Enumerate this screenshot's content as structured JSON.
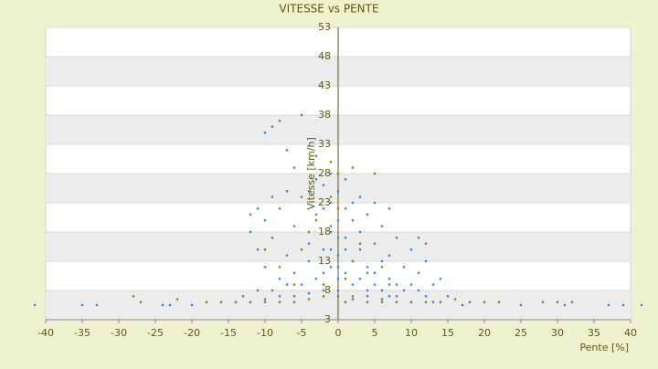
{
  "chart_data": {
    "type": "scatter",
    "title": "VITESSE vs PENTE",
    "x_label": "Pente [%]",
    "y_label": "Vitesse [km/h]",
    "xlim": [
      -40,
      40
    ],
    "xticks": [
      -40,
      -35,
      -30,
      -25,
      -20,
      -15,
      -10,
      -5,
      0,
      5,
      10,
      15,
      20,
      25,
      30,
      35,
      40
    ],
    "ylim": [
      3,
      53
    ],
    "yticks": [
      3,
      8,
      13,
      18,
      23,
      28,
      33,
      38,
      43,
      48,
      53
    ],
    "grid": true,
    "series": [
      {
        "color": "#3b8fd8",
        "x": [
          -41.5,
          -35,
          -33,
          -24,
          -23,
          -20,
          17,
          25,
          28,
          31,
          37,
          39,
          41.5,
          -10,
          -9,
          -8,
          -5,
          -7,
          -3,
          -6,
          -12,
          -11,
          -10,
          -9,
          -8,
          -7,
          -6,
          -5,
          -4,
          -3,
          -2,
          -1,
          0,
          1,
          2,
          3,
          4,
          5,
          6,
          7,
          8,
          9,
          10,
          11,
          12,
          13,
          14,
          15,
          -10,
          -8,
          -6,
          -4,
          -2,
          -1,
          0,
          0,
          1,
          2,
          3,
          4,
          5,
          6,
          7,
          8,
          9,
          10,
          11,
          12,
          -13,
          -11,
          -9,
          -7,
          -5,
          -3,
          -2,
          -1,
          0,
          1,
          2,
          3,
          4,
          5,
          6,
          7,
          8,
          10,
          13,
          -14,
          -12,
          -10,
          -8,
          -6,
          -4,
          -2,
          0,
          2,
          4,
          6,
          -3,
          -1,
          1,
          -4,
          3,
          -2,
          2,
          5,
          7,
          -7,
          -9,
          11,
          12,
          -11,
          -12,
          -1,
          1,
          0,
          -1,
          0
        ],
        "values": [
          5.5,
          5.5,
          5.5,
          5.5,
          5.5,
          5.5,
          5.5,
          5.5,
          6,
          5.5,
          5.5,
          5.5,
          5.5,
          35,
          36,
          37,
          38,
          32,
          31,
          29,
          18,
          15,
          20,
          17,
          22,
          14,
          19,
          24,
          16,
          21,
          26,
          23,
          25,
          22,
          20,
          18,
          21,
          16,
          19,
          14,
          17,
          12,
          15,
          11,
          13,
          9,
          10,
          7,
          12,
          10,
          11,
          13,
          15,
          18,
          20,
          14,
          17,
          13,
          15,
          12,
          11,
          13,
          10,
          9,
          8,
          9,
          8,
          7,
          7,
          8,
          8,
          9,
          9,
          10,
          11,
          12,
          10,
          11,
          9,
          10,
          8,
          9,
          8,
          7,
          7,
          6,
          6,
          6,
          6,
          6.5,
          7,
          7,
          7.5,
          8,
          8,
          7,
          7,
          6.5,
          27,
          28,
          27,
          25,
          24,
          22,
          23,
          23,
          22,
          25,
          24,
          17,
          16,
          22,
          21,
          19,
          15,
          17,
          15,
          12
        ]
      },
      {
        "color": "#8a8a10",
        "x": [
          -28,
          -27,
          -22,
          -18,
          -16,
          -14,
          -12,
          -10,
          -8,
          -6,
          -4,
          -2,
          0,
          1,
          2,
          4,
          6,
          8,
          10,
          12,
          14,
          16,
          18,
          20,
          22,
          30,
          32,
          -5,
          -3,
          0,
          2,
          5,
          -1,
          3,
          6,
          -8,
          -10,
          1,
          -2,
          4,
          7,
          -6,
          0,
          -1,
          2,
          -4
        ],
        "values": [
          7,
          6,
          6.5,
          6,
          6,
          6,
          6,
          6,
          6,
          6,
          6.5,
          7,
          7,
          6,
          6.5,
          6,
          6,
          6,
          6,
          6,
          6,
          6.5,
          6,
          6,
          6,
          6,
          6,
          15,
          20,
          28,
          29,
          28,
          24,
          16,
          12,
          12,
          15,
          10,
          9,
          11,
          9,
          9,
          22,
          30,
          13,
          18
        ]
      }
    ]
  }
}
